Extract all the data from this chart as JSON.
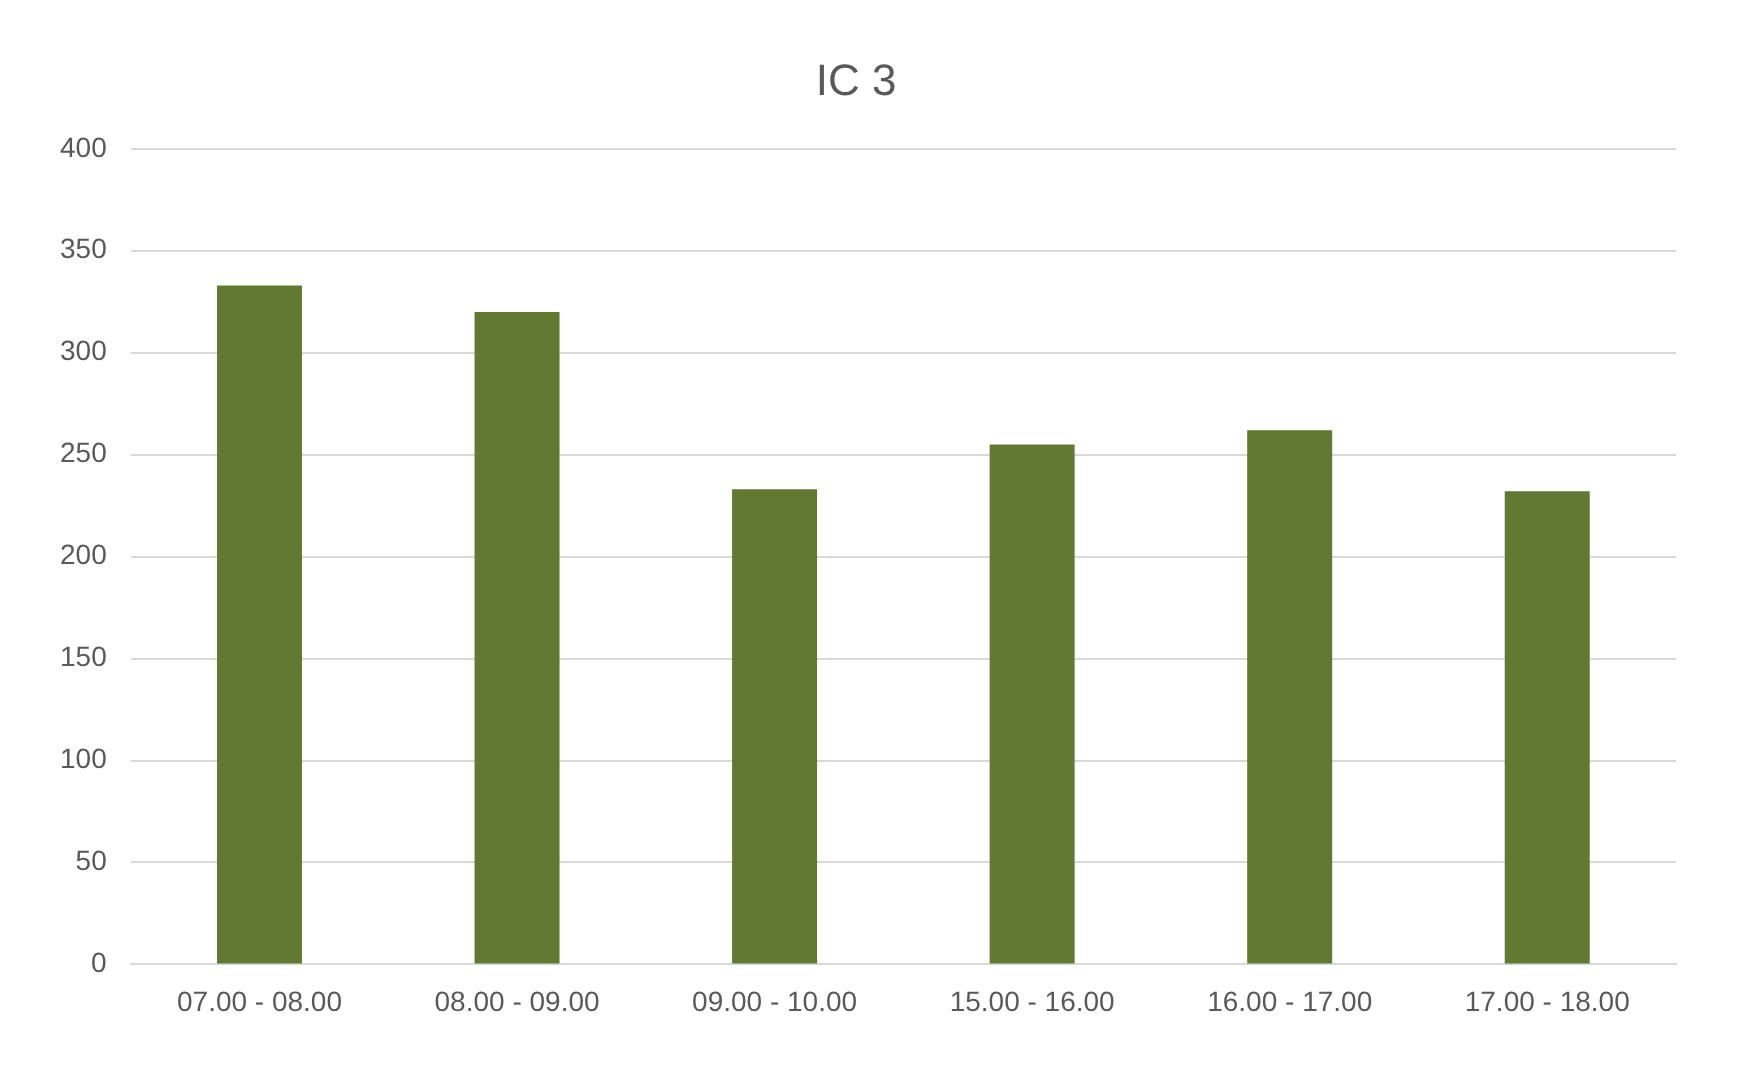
{
  "chart_data": {
    "type": "bar",
    "title": "IC 3",
    "categories": [
      "07.00 - 08.00",
      "08.00 - 09.00",
      "09.00 - 10.00",
      "15.00 - 16.00",
      "16.00 - 17.00",
      "17.00 - 18.00"
    ],
    "values": [
      333,
      320,
      233,
      255,
      262,
      232
    ],
    "color": "#617930",
    "ylim": [
      0,
      400
    ],
    "yticks": [
      0,
      50,
      100,
      150,
      200,
      250,
      300,
      350,
      400
    ],
    "grid": "y",
    "legend": false
  }
}
